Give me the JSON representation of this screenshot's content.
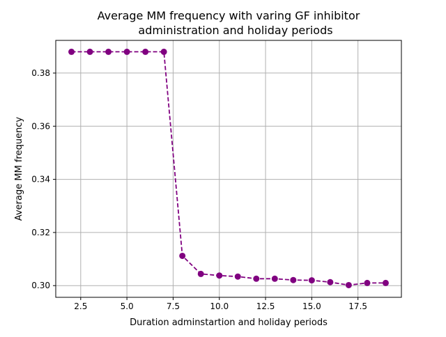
{
  "chart_data": {
    "type": "line",
    "title": "Average MM frequency with varing GF inhibitor\nadministration and holiday periods",
    "title_lines": [
      "Average MM frequency with varing GF inhibitor",
      "administration and holiday periods"
    ],
    "xlabel": "Duration adminstartion and holiday periods",
    "ylabel": "Average MM frequency",
    "xlim": [
      1.15,
      19.85
    ],
    "ylim": [
      0.2956,
      0.3923
    ],
    "x_ticks": [
      2.5,
      5.0,
      7.5,
      10.0,
      12.5,
      15.0,
      17.5
    ],
    "x_tick_labels": [
      "2.5",
      "5.0",
      "7.5",
      "10.0",
      "12.5",
      "15.0",
      "17.5"
    ],
    "y_ticks": [
      0.3,
      0.32,
      0.34,
      0.36,
      0.38
    ],
    "y_tick_labels": [
      "0.30",
      "0.32",
      "0.34",
      "0.36",
      "0.38"
    ],
    "grid": true,
    "legend": "none",
    "line_style": "dashed",
    "marker": "circle",
    "color": "#800080",
    "series": [
      {
        "x": [
          2,
          3,
          4,
          5,
          6,
          7,
          8,
          9,
          10,
          11,
          12,
          13,
          14,
          15,
          16,
          17,
          18,
          19
        ],
        "values": [
          0.388,
          0.388,
          0.388,
          0.388,
          0.388,
          0.388,
          0.3112,
          0.3044,
          0.3038,
          0.3034,
          0.3026,
          0.3026,
          0.3021,
          0.302,
          0.3013,
          0.3002,
          0.301,
          0.301
        ]
      }
    ]
  }
}
